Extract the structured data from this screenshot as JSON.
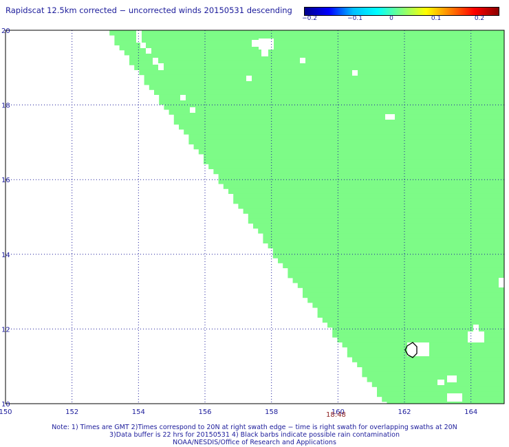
{
  "title": "Rapidscat 12.5km corrected − uncorrected winds 20150531 descending",
  "colorbar": {
    "labels": [
      "−0.2",
      "−0.1",
      "0",
      "0.1",
      "0.2"
    ],
    "colors": [
      "#00008b",
      "#0000ff",
      "#00bfff",
      "#00ffff",
      "#7fff7f",
      "#ffff00",
      "#ff8000",
      "#ff0000",
      "#8b0000"
    ]
  },
  "map": {
    "lon_range": [
      150,
      165
    ],
    "lat_range": [
      10,
      20
    ],
    "lon_ticks": [
      "150",
      "152",
      "154",
      "156",
      "158",
      "160",
      "162",
      "164"
    ],
    "lat_ticks": [
      "10",
      "12",
      "14",
      "16",
      "18",
      "20"
    ],
    "fill_color": "#7dfb87",
    "grid_color": "#1a1a9a"
  },
  "timestamp": "18:48",
  "notes": [
    "Note: 1) Times are GMT 2)Times correspond to 20N at right swath edge − time is right swath for overlapping swaths at 20N",
    "3)Data buffer is 22 hrs for 20150531 4) Black barbs indicate possible rain contamination",
    "NOAA/NESDIS/Office of Research and Applications"
  ]
}
